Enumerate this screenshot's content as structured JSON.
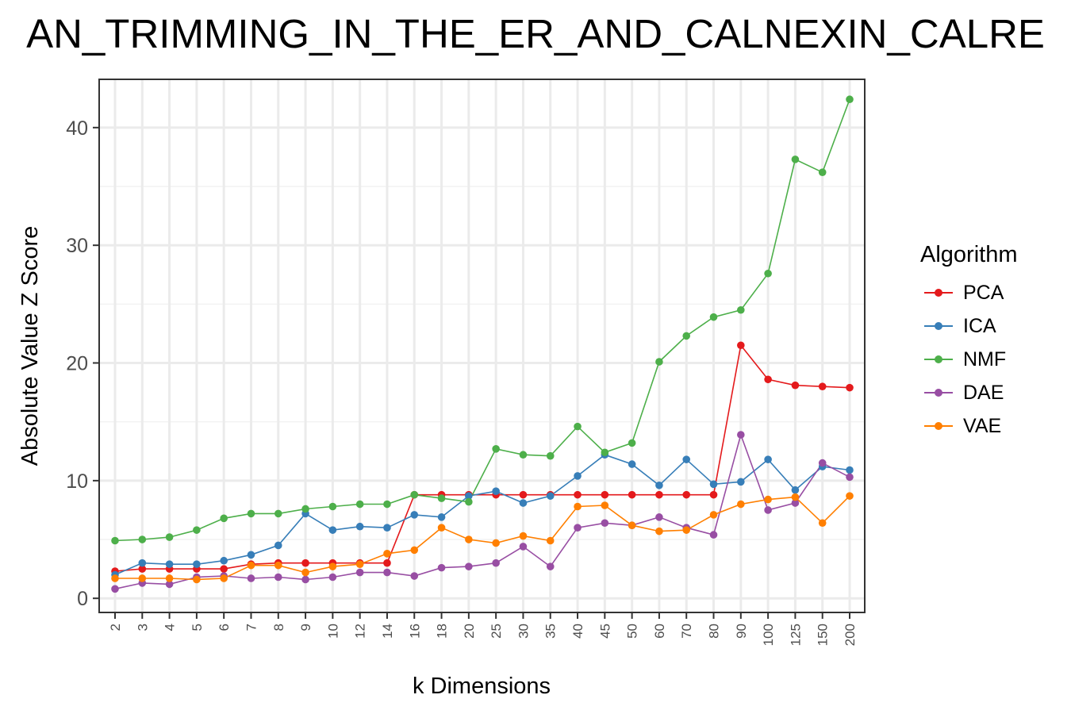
{
  "chart_data": {
    "type": "line",
    "title": "AN_TRIMMING_IN_THE_ER_AND_CALNEXIN_CALRE",
    "xlabel": "k Dimensions",
    "ylabel": "Absolute Value Z Score",
    "categories": [
      "2",
      "3",
      "4",
      "5",
      "6",
      "7",
      "8",
      "9",
      "10",
      "12",
      "14",
      "16",
      "18",
      "20",
      "25",
      "30",
      "35",
      "40",
      "45",
      "50",
      "60",
      "70",
      "80",
      "90",
      "100",
      "125",
      "150",
      "200"
    ],
    "ylim": [
      -1.2,
      44.1
    ],
    "yticks": [
      0,
      10,
      20,
      30,
      40
    ],
    "grid": true,
    "legend": {
      "title": "Algorithm",
      "position": "right"
    },
    "series": [
      {
        "name": "PCA",
        "color": "#E41A1C",
        "values": [
          2.3,
          2.5,
          2.5,
          2.5,
          2.5,
          2.9,
          3.0,
          3.0,
          3.0,
          3.0,
          3.0,
          8.8,
          8.8,
          8.8,
          8.8,
          8.8,
          8.8,
          8.8,
          8.8,
          8.8,
          8.8,
          8.8,
          8.8,
          21.5,
          18.6,
          18.1,
          18.0,
          17.9
        ]
      },
      {
        "name": "ICA",
        "color": "#377EB8",
        "values": [
          2.0,
          3.0,
          2.9,
          2.9,
          3.2,
          3.7,
          4.5,
          7.2,
          5.8,
          6.1,
          6.0,
          7.1,
          6.9,
          8.7,
          9.1,
          8.1,
          8.7,
          10.4,
          12.2,
          11.4,
          9.6,
          11.8,
          9.7,
          9.9,
          11.8,
          9.2,
          11.2,
          10.9
        ]
      },
      {
        "name": "NMF",
        "color": "#4DAF4A",
        "values": [
          4.9,
          5.0,
          5.2,
          5.8,
          6.8,
          7.2,
          7.2,
          7.6,
          7.8,
          8.0,
          8.0,
          8.8,
          8.5,
          8.2,
          12.7,
          12.2,
          12.1,
          14.6,
          12.4,
          13.2,
          20.1,
          22.3,
          23.9,
          24.5,
          27.6,
          37.3,
          36.2,
          42.4
        ]
      },
      {
        "name": "DAE",
        "color": "#984EA3",
        "values": [
          0.8,
          1.3,
          1.2,
          1.8,
          1.9,
          1.7,
          1.8,
          1.6,
          1.8,
          2.2,
          2.2,
          1.9,
          2.6,
          2.7,
          3.0,
          4.4,
          2.7,
          6.0,
          6.4,
          6.2,
          6.9,
          6.0,
          5.4,
          13.9,
          7.5,
          8.1,
          11.5,
          10.3
        ]
      },
      {
        "name": "VAE",
        "color": "#FF7F00",
        "values": [
          1.7,
          1.7,
          1.7,
          1.6,
          1.7,
          2.8,
          2.8,
          2.2,
          2.7,
          2.9,
          3.8,
          4.1,
          6.0,
          5.0,
          4.7,
          5.3,
          4.9,
          7.8,
          7.9,
          6.2,
          5.7,
          5.8,
          7.1,
          8.0,
          8.4,
          8.6,
          6.4,
          8.7
        ]
      }
    ]
  }
}
